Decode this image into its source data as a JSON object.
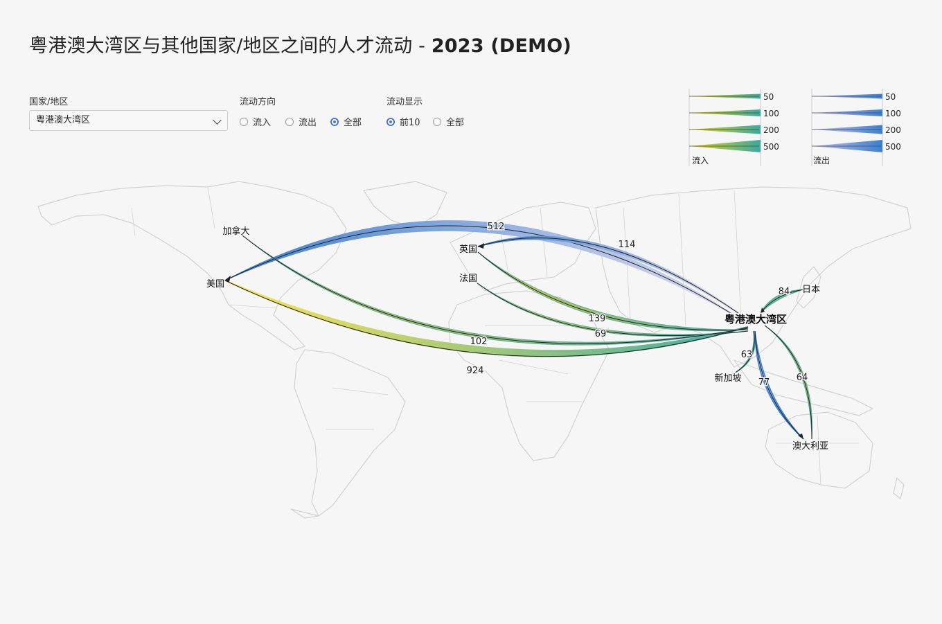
{
  "title": {
    "main": "粤港澳大湾区与其他国家/地区之间的人才流动 - ",
    "bold": "2023 (DEMO)"
  },
  "controls": {
    "region_label": "国家/地区",
    "region_value": "粤港澳大湾区",
    "direction_label": "流动方向",
    "direction_options": [
      "流入",
      "流出",
      "全部"
    ],
    "direction_selected": "全部",
    "display_label": "流动显示",
    "display_options": [
      "前10",
      "全部"
    ],
    "display_selected": "前10"
  },
  "legend": {
    "values": [
      "50",
      "100",
      "200",
      "500"
    ],
    "inflow_label": "流入",
    "outflow_label": "流出",
    "inflow_colors": [
      "#e5d51e",
      "#3aa8a0"
    ],
    "outflow_colors": [
      "#c8c3e8",
      "#3b7fd0"
    ]
  },
  "map": {
    "hub": "粤港澳大湾区",
    "flows": [
      {
        "country": "美国",
        "direction": "inflow",
        "value": 924
      },
      {
        "country": "美国",
        "direction": "outflow",
        "value": 512
      },
      {
        "country": "英国",
        "direction": "inflow",
        "value": 139
      },
      {
        "country": "英国",
        "direction": "outflow",
        "value": 114
      },
      {
        "country": "加拿大",
        "direction": "inflow",
        "value": 102
      },
      {
        "country": "日本",
        "direction": "inflow",
        "value": 84
      },
      {
        "country": "澳大利亚",
        "direction": "outflow",
        "value": 77
      },
      {
        "country": "法国",
        "direction": "inflow",
        "value": 69
      },
      {
        "country": "澳大利亚",
        "direction": "inflow",
        "value": 64
      },
      {
        "country": "新加坡",
        "direction": "inflow",
        "value": 63
      }
    ]
  }
}
